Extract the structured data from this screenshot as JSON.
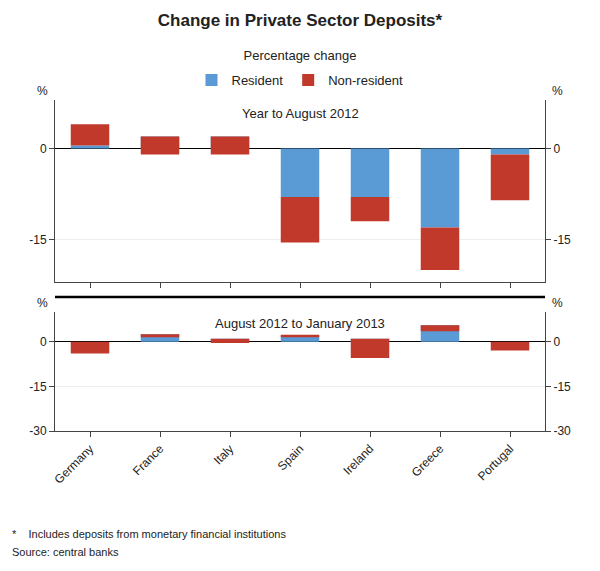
{
  "title": "Change in Private Sector Deposits*",
  "subtitle": "Percentage change",
  "annotations": [
    "*    Includes deposits from monetary financial institutions",
    "Source: central banks"
  ],
  "chart_data": [
    {
      "type": "bar",
      "title": "Year to August 2012",
      "categories": [
        "Germany",
        "France",
        "Italy",
        "Spain",
        "Ireland",
        "Greece",
        "Portugal"
      ],
      "series": [
        {
          "name": "Resident",
          "color": "#5B9BD5",
          "values": [
            0.5,
            2.0,
            2.0,
            -8.0,
            -8.0,
            -13.0,
            -1.0
          ]
        },
        {
          "name": "Non-resident",
          "color": "#C0392B",
          "values": [
            3.5,
            -3.0,
            -3.0,
            -7.5,
            -4.0,
            -7.0,
            -7.5
          ]
        }
      ],
      "stacked": true,
      "ylim": [
        -22,
        8
      ],
      "yticks": [
        0,
        -15
      ],
      "y2lim": [
        -22,
        8
      ],
      "y2ticks": [
        0,
        -15
      ],
      "grid": true,
      "legend": "top",
      "tick_labels": "y",
      "annotations": [
        "%",
        "%"
      ]
    },
    {
      "type": "bar",
      "title": "August 2012 to January 2013",
      "categories": [
        "Germany",
        "France",
        "Italy",
        "Spain",
        "Ireland",
        "Greece",
        "Portugal"
      ],
      "series": [
        {
          "name": "Resident",
          "color": "#5B9BD5",
          "values": [
            0.0,
            2.5,
            1.0,
            2.0,
            1.0,
            5.5,
            0.0
          ]
        },
        {
          "name": "Non-resident",
          "color": "#C0392B",
          "values": [
            -4.0,
            -1.0,
            -1.5,
            -0.5,
            -6.5,
            -2.0,
            -3.0
          ]
        }
      ],
      "stacked": true,
      "ylim": [
        -30,
        10
      ],
      "yticks": [
        0,
        -15,
        -30
      ],
      "y2lim": [
        -30,
        10
      ],
      "y2ticks": [
        0,
        -15,
        -30
      ],
      "grid": true,
      "annotations": [
        "%",
        "%"
      ]
    }
  ]
}
